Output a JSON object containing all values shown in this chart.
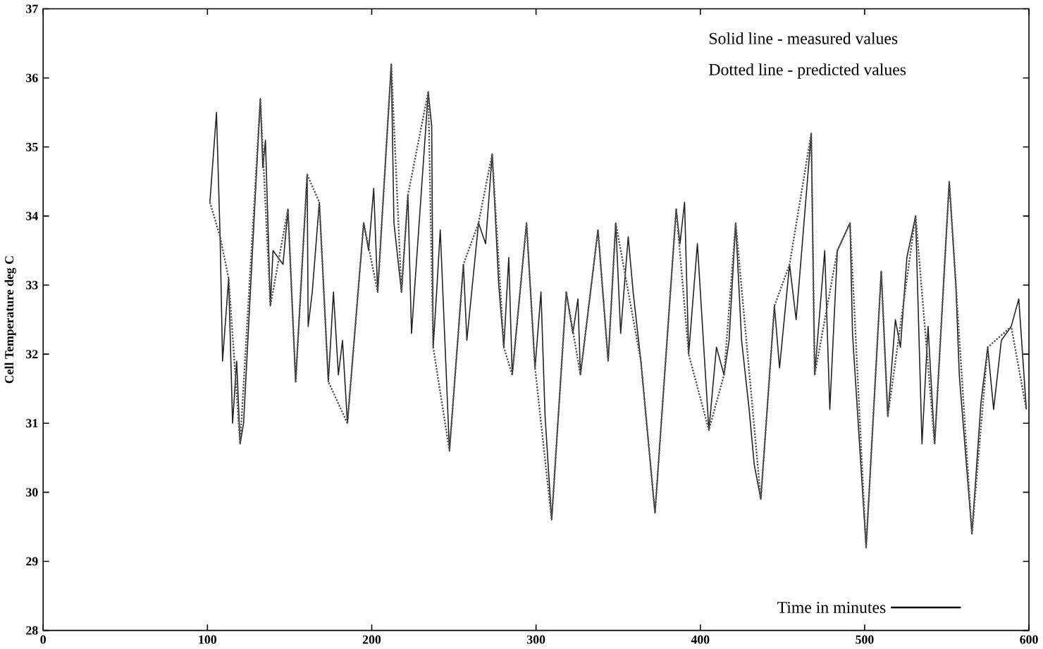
{
  "chart_data": {
    "type": "line",
    "xlabel": "Time in minutes",
    "ylabel": "Cell Temperature deg C",
    "annotations": [
      "Solid line - measured values",
      "Dotted line - predicted values"
    ],
    "xlim": [
      0,
      600
    ],
    "ylim": [
      28,
      37
    ],
    "xticks": [
      0,
      100,
      200,
      300,
      400,
      500,
      600
    ],
    "yticks": [
      28,
      29,
      30,
      31,
      32,
      33,
      34,
      35,
      36,
      37
    ],
    "series": [
      {
        "color": "#222222",
        "line_style": "solid",
        "x": [
          101.5,
          105.5,
          107.7,
          109.2,
          112.9,
          115.3,
          117.8,
          119.9,
          122,
          132.2,
          133.7,
          135.3,
          138.3,
          139.9,
          146,
          149,
          153.7,
          160.7,
          161.3,
          163.8,
          168.1,
          173.6,
          176.7,
          179.7,
          182.2,
          185.2,
          195.1,
          198.1,
          201.2,
          203.6,
          211.9,
          213.5,
          218.1,
          222,
          224.2,
          234.4,
          236.5,
          237.4,
          239.5,
          241.7,
          247.3,
          255.8,
          257.9,
          265,
          269.3,
          273.3,
          277.3,
          280.4,
          283.4,
          285.5,
          294.2,
          299.4,
          303,
          305.5,
          309.5,
          318.4,
          322.4,
          325.5,
          327,
          330.1,
          337.7,
          343.9,
          348.5,
          351.5,
          356.1,
          359.1,
          363.8,
          372.4,
          385.3,
          387.6,
          390.4,
          392.9,
          398.2,
          405.2,
          409.8,
          414.4,
          417.5,
          421.5,
          425.1,
          429.7,
          432.8,
          436.8,
          445.1,
          448.2,
          454.3,
          458.3,
          467.5,
          469.6,
          475.7,
          478.8,
          483.4,
          491.1,
          492.6,
          500.9,
          510.1,
          514.1,
          518.7,
          521.8,
          525.7,
          531,
          534.9,
          538.6,
          542.6,
          551.5,
          555.5,
          557.6,
          565.3,
          570.8,
          574.9,
          578.5,
          583.2,
          589.2,
          593.8,
          598.4
        ],
        "values": [
          34.2,
          35.5,
          33.7,
          31.9,
          33.1,
          31.0,
          31.9,
          30.7,
          31.0,
          35.7,
          34.7,
          35.1,
          32.7,
          33.5,
          33.3,
          34.1,
          31.6,
          34.6,
          32.4,
          32.9,
          34.2,
          31.6,
          32.9,
          31.7,
          32.2,
          31.0,
          33.9,
          33.5,
          34.4,
          32.9,
          36.2,
          33.9,
          32.9,
          34.3,
          32.3,
          35.8,
          35.3,
          32.1,
          32.9,
          33.8,
          30.6,
          33.3,
          32.2,
          33.9,
          33.6,
          34.9,
          33.0,
          32.1,
          33.4,
          31.7,
          33.9,
          31.8,
          32.9,
          31.1,
          29.6,
          32.9,
          32.3,
          32.8,
          31.7,
          32.3,
          33.8,
          31.9,
          33.9,
          32.3,
          33.7,
          32.9,
          31.9,
          29.7,
          34.1,
          33.6,
          34.2,
          32.0,
          33.6,
          30.9,
          32.1,
          31.7,
          32.2,
          33.9,
          32.2,
          31.2,
          30.4,
          29.9,
          32.7,
          31.8,
          33.3,
          32.5,
          35.2,
          31.7,
          33.5,
          31.2,
          33.5,
          33.9,
          32.3,
          29.2,
          33.2,
          31.1,
          32.5,
          32.1,
          33.4,
          34.0,
          30.7,
          32.4,
          30.7,
          34.5,
          33.0,
          31.7,
          29.4,
          31.3,
          32.1,
          31.2,
          32.2,
          32.4,
          32.8,
          31.2
        ]
      },
      {
        "color": "#555555",
        "line_style": "dotted",
        "x": [
          101.5,
          107.7,
          112.9,
          119.9,
          132.2,
          138.3,
          149,
          153.7,
          160.7,
          168.1,
          173.6,
          185.2,
          195.1,
          203.6,
          211.9,
          218.1,
          222,
          234.4,
          237.4,
          247.3,
          255.8,
          265,
          273.3,
          280.4,
          285.5,
          294.2,
          299.4,
          309.5,
          318.4,
          327,
          337.7,
          343.9,
          348.5,
          363.8,
          372.4,
          385.3,
          392.9,
          405.2,
          414.4,
          421.5,
          436.8,
          445.1,
          454.3,
          467.5,
          469.6,
          483.4,
          491.1,
          500.9,
          510.1,
          514.1,
          531,
          542.6,
          551.5,
          565.3,
          574.9,
          589.2,
          598.4
        ],
        "values": [
          34.2,
          33.7,
          33.1,
          30.7,
          35.7,
          32.7,
          34.1,
          31.6,
          34.6,
          34.2,
          31.6,
          31.0,
          33.9,
          32.9,
          36.2,
          32.9,
          34.3,
          35.8,
          32.1,
          30.6,
          33.3,
          33.9,
          34.9,
          32.1,
          31.7,
          33.9,
          31.8,
          29.6,
          32.9,
          31.7,
          33.8,
          31.9,
          33.9,
          31.9,
          29.7,
          34.1,
          32.0,
          30.9,
          31.7,
          33.9,
          29.9,
          32.7,
          33.3,
          35.2,
          31.7,
          33.5,
          33.9,
          29.2,
          33.2,
          31.1,
          34.0,
          30.7,
          34.5,
          29.4,
          32.1,
          32.4,
          31.2
        ]
      }
    ]
  }
}
